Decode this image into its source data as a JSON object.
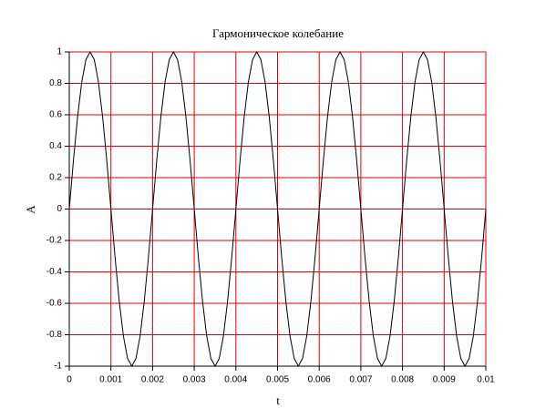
{
  "chart_data": {
    "type": "line",
    "title": "Гармоническое колебание",
    "xlabel": "t",
    "ylabel": "A",
    "x": [
      0,
      0.0001,
      0.0002,
      0.0003,
      0.0004,
      0.0005,
      0.0006,
      0.0007,
      0.0008,
      0.0009,
      0.001,
      0.0011,
      0.0012,
      0.0013,
      0.0014,
      0.0015,
      0.0016,
      0.0017,
      0.0018,
      0.0019,
      0.002,
      0.0021,
      0.0022,
      0.0023,
      0.0024,
      0.0025,
      0.0026,
      0.0027,
      0.0028,
      0.0029,
      0.003,
      0.0031,
      0.0032,
      0.0033,
      0.0034,
      0.0035,
      0.0036,
      0.0037,
      0.0038,
      0.0039,
      0.004,
      0.0041,
      0.0042,
      0.0043,
      0.0044,
      0.0045,
      0.0046,
      0.0047,
      0.0048,
      0.0049,
      0.005,
      0.0051,
      0.0052,
      0.0053,
      0.0054,
      0.0055,
      0.0056,
      0.0057,
      0.0058,
      0.0059,
      0.006,
      0.0061,
      0.0062,
      0.0063,
      0.0064,
      0.0065,
      0.0066,
      0.0067,
      0.0068,
      0.0069,
      0.007,
      0.0071,
      0.0072,
      0.0073,
      0.0074,
      0.0075,
      0.0076,
      0.0077,
      0.0078,
      0.0079,
      0.008,
      0.0081,
      0.0082,
      0.0083,
      0.0084,
      0.0085,
      0.0086,
      0.0087,
      0.0088,
      0.0089,
      0.009,
      0.0091,
      0.0092,
      0.0093,
      0.0094,
      0.0095,
      0.0096,
      0.0097,
      0.0098,
      0.0099,
      0.01
    ],
    "series": [
      {
        "color": "#000000",
        "values": [
          0,
          0.309,
          0.588,
          0.809,
          0.951,
          1,
          0.951,
          0.809,
          0.588,
          0.309,
          0,
          -0.309,
          -0.588,
          -0.809,
          -0.951,
          -1,
          -0.951,
          -0.809,
          -0.588,
          -0.309,
          0,
          0.309,
          0.588,
          0.809,
          0.951,
          1,
          0.951,
          0.809,
          0.588,
          0.309,
          0,
          -0.309,
          -0.588,
          -0.809,
          -0.951,
          -1,
          -0.951,
          -0.809,
          -0.588,
          -0.309,
          0,
          0.309,
          0.588,
          0.809,
          0.951,
          1,
          0.951,
          0.809,
          0.588,
          0.309,
          0,
          -0.309,
          -0.588,
          -0.809,
          -0.951,
          -1,
          -0.951,
          -0.809,
          -0.588,
          -0.309,
          0,
          0.309,
          0.588,
          0.809,
          0.951,
          1,
          0.951,
          0.809,
          0.588,
          0.309,
          0,
          -0.309,
          -0.588,
          -0.809,
          -0.951,
          -1,
          -0.951,
          -0.809,
          -0.588,
          -0.309,
          0,
          0.309,
          0.588,
          0.809,
          0.951,
          1,
          0.951,
          0.809,
          0.588,
          0.309,
          0,
          -0.309,
          -0.588,
          -0.809,
          -0.951,
          -1,
          -0.951,
          -0.809,
          -0.588,
          -0.309,
          0
        ]
      }
    ],
    "xlim": [
      0,
      0.01
    ],
    "xticks": [
      0,
      0.001,
      0.002,
      0.003,
      0.004,
      0.005,
      0.006,
      0.007,
      0.008,
      0.009,
      0.01
    ],
    "ylim": [
      -1,
      1
    ],
    "yticks": [
      -1,
      -0.8,
      -0.6,
      -0.4,
      -0.2,
      0,
      0.2,
      0.4,
      0.6,
      0.8,
      1
    ],
    "grid": true,
    "grid_color": "#e00000"
  }
}
